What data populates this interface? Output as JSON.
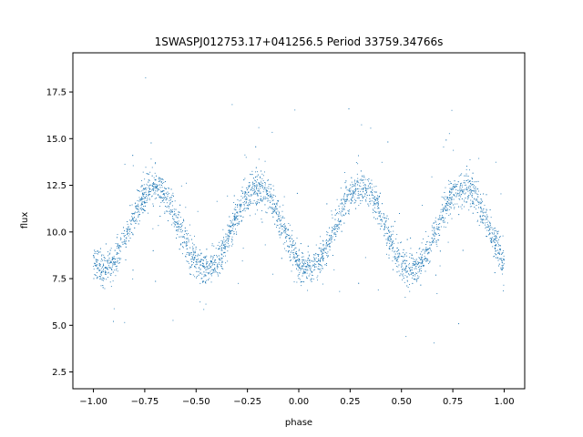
{
  "chart_data": {
    "type": "scatter",
    "title": "1SWASPJ012753.17+041256.5 Period 33759.34766s",
    "xlabel": "phase",
    "ylabel": "flux",
    "xlim": [
      -1.1,
      1.1
    ],
    "ylim": [
      1.6,
      19.6
    ],
    "xticks": [
      -1.0,
      -0.75,
      -0.5,
      -0.25,
      0.0,
      0.25,
      0.5,
      0.75,
      1.0
    ],
    "xtick_labels": [
      "−1.00",
      "−0.75",
      "−0.50",
      "−0.25",
      "0.00",
      "0.25",
      "0.50",
      "0.75",
      "1.00"
    ],
    "yticks": [
      2.5,
      5.0,
      7.5,
      10.0,
      12.5,
      15.0,
      17.5
    ],
    "ytick_labels": [
      "2.5",
      "5.0",
      "7.5",
      "10.0",
      "12.5",
      "15.0",
      "17.5"
    ],
    "grid": false,
    "legend": "none",
    "series_color": "#1f77b4",
    "light_curve": {
      "phase_range": [
        -1.0,
        1.0
      ],
      "mean_flux": 10.2,
      "amplitude": 2.2,
      "minima_phase": [
        -0.95,
        -0.45,
        0.05,
        0.55
      ],
      "maxima_phase": [
        -0.7,
        -0.2,
        0.3,
        0.8
      ]
    }
  }
}
